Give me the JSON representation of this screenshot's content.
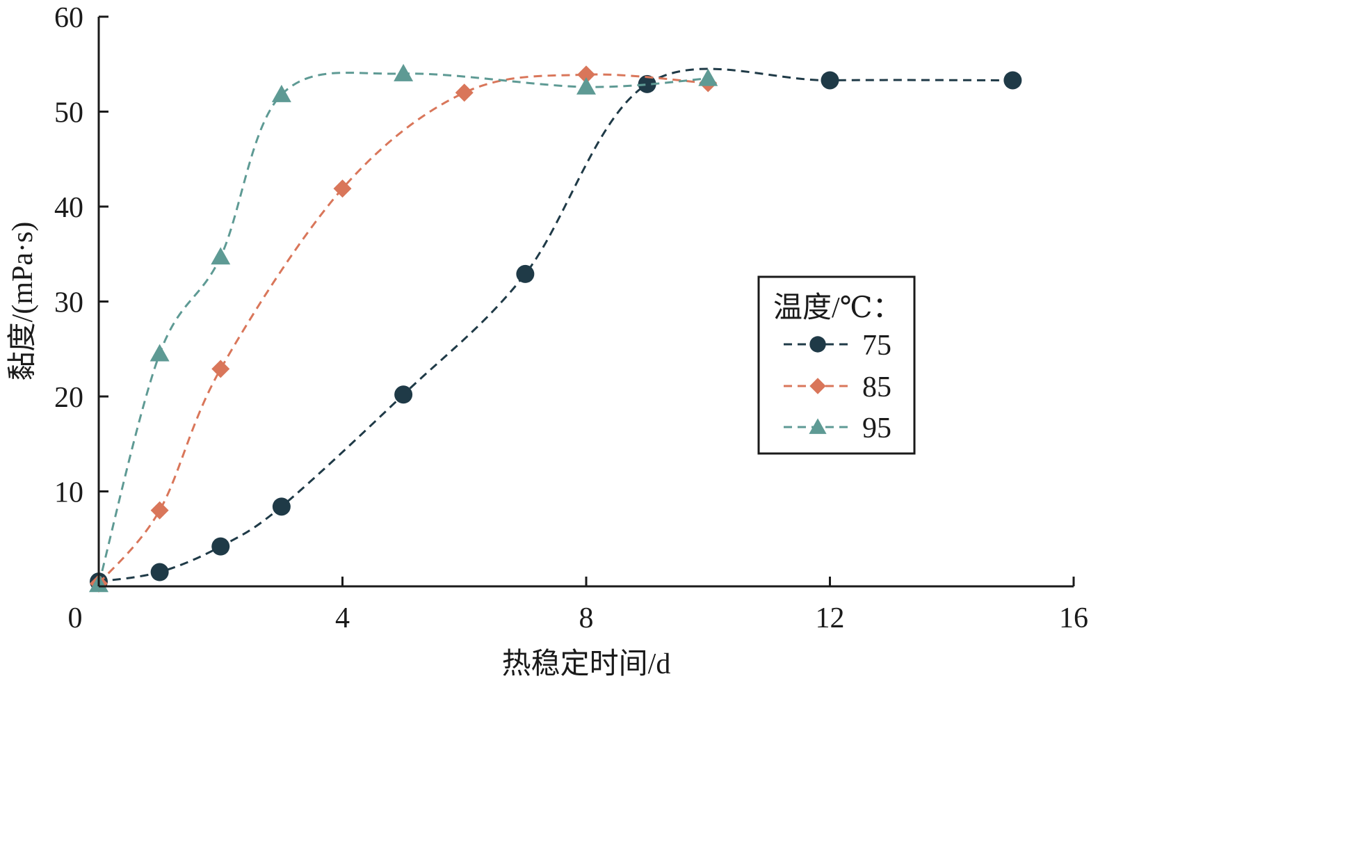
{
  "colors": {
    "75": "#1f3a47",
    "85": "#d9765a",
    "95": "#5e9a94",
    "axis": "#1a1a1a"
  },
  "chart_data": {
    "type": "line",
    "title": "",
    "xlabel": "热稳定时间/d",
    "ylabel": "黏度/(mPa·s)",
    "xlim": [
      0,
      16
    ],
    "ylim": [
      0,
      60
    ],
    "xticks": [
      0,
      4,
      8,
      12,
      16
    ],
    "yticks": [
      10,
      20,
      30,
      40,
      50,
      60
    ],
    "grid": false,
    "line_style": "dashed-smooth",
    "legend": {
      "title": "温度/℃：",
      "position": "right-middle"
    },
    "series": [
      {
        "name": "75",
        "marker": "circle",
        "points": [
          [
            0,
            0.5
          ],
          [
            1,
            1.5
          ],
          [
            2,
            4.2
          ],
          [
            3,
            8.4
          ],
          [
            5,
            20.2
          ],
          [
            7,
            32.9
          ],
          [
            9,
            52.9
          ],
          [
            12,
            53.3
          ],
          [
            15,
            53.3
          ]
        ]
      },
      {
        "name": "85",
        "marker": "diamond",
        "points": [
          [
            0,
            0.3
          ],
          [
            1,
            8.0
          ],
          [
            2,
            22.9
          ],
          [
            4,
            41.9
          ],
          [
            6,
            52.0
          ],
          [
            8,
            53.9
          ],
          [
            10,
            53.0
          ]
        ]
      },
      {
        "name": "95",
        "marker": "triangle",
        "points": [
          [
            0,
            0.2
          ],
          [
            1,
            24.5
          ],
          [
            2,
            34.7
          ],
          [
            3,
            51.8
          ],
          [
            5,
            54.0
          ],
          [
            8,
            52.6
          ],
          [
            10,
            53.5
          ]
        ]
      }
    ]
  }
}
